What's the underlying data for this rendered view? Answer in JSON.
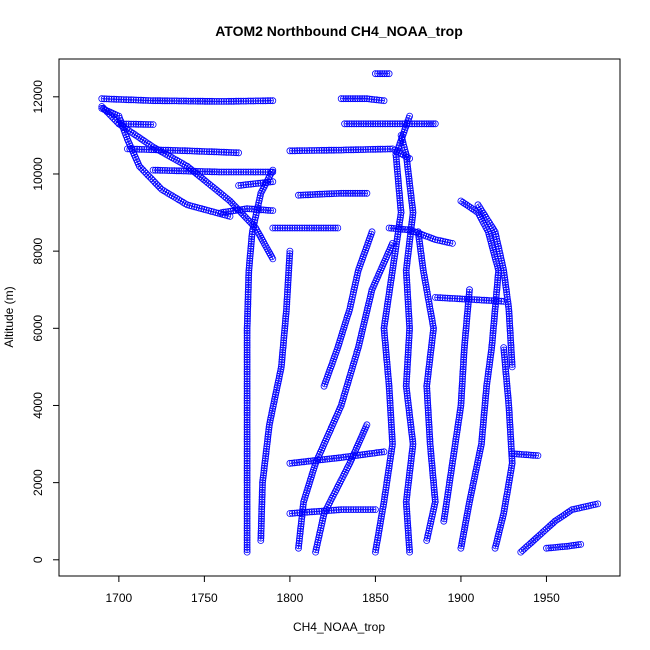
{
  "chart_data": {
    "type": "scatter",
    "title": "ATOM2 Northbound CH4_NOAA_trop",
    "xlabel": "CH4_NOAA_trop",
    "ylabel": "Altitude (m)",
    "xlim": [
      1665,
      1993
    ],
    "ylim": [
      -420,
      12980
    ],
    "xticks": [
      1700,
      1750,
      1800,
      1850,
      1900,
      1950
    ],
    "yticks": [
      0,
      2000,
      4000,
      6000,
      8000,
      10000,
      12000
    ],
    "grid": false,
    "legend": "none",
    "series": [
      {
        "marker": "open-circle",
        "connect_points": true,
        "color": "#0000ff",
        "tracks": [
          [
            [
              1775,
              200
            ],
            [
              1775,
              1500
            ],
            [
              1775,
              3000
            ],
            [
              1775,
              4500
            ],
            [
              1775,
              6000
            ],
            [
              1776,
              7500
            ],
            [
              1778,
              8500
            ],
            [
              1783,
              9500
            ],
            [
              1790,
              10100
            ]
          ],
          [
            [
              1765,
              8900
            ],
            [
              1740,
              9200
            ],
            [
              1725,
              9600
            ],
            [
              1712,
              10200
            ],
            [
              1705,
              10900
            ],
            [
              1700,
              11500
            ],
            [
              1690,
              11700
            ]
          ],
          [
            [
              1690,
              11950
            ],
            [
              1720,
              11900
            ],
            [
              1760,
              11880
            ],
            [
              1790,
              11900
            ]
          ],
          [
            [
              1700,
              11300
            ],
            [
              1720,
              11280
            ]
          ],
          [
            [
              1705,
              10650
            ],
            [
              1740,
              10600
            ],
            [
              1770,
              10550
            ]
          ],
          [
            [
              1720,
              10100
            ],
            [
              1760,
              10050
            ],
            [
              1790,
              10050
            ]
          ],
          [
            [
              1690,
              11750
            ],
            [
              1700,
              11300
            ],
            [
              1720,
              10700
            ],
            [
              1740,
              10200
            ],
            [
              1765,
              9300
            ],
            [
              1780,
              8600
            ],
            [
              1790,
              7800
            ]
          ],
          [
            [
              1800,
              10600
            ],
            [
              1830,
              10620
            ],
            [
              1860,
              10650
            ],
            [
              1870,
              10400
            ]
          ],
          [
            [
              1830,
              11950
            ],
            [
              1845,
              11950
            ],
            [
              1855,
              11900
            ]
          ],
          [
            [
              1850,
              12600
            ],
            [
              1858,
              12600
            ]
          ],
          [
            [
              1832,
              11300
            ],
            [
              1850,
              11300
            ],
            [
              1880,
              11300
            ],
            [
              1885,
              11300
            ]
          ],
          [
            [
              1805,
              9450
            ],
            [
              1830,
              9500
            ],
            [
              1845,
              9500
            ]
          ],
          [
            [
              1790,
              8600
            ],
            [
              1810,
              8600
            ],
            [
              1828,
              8600
            ]
          ],
          [
            [
              1858,
              8600
            ],
            [
              1870,
              8550
            ],
            [
              1885,
              8300
            ],
            [
              1895,
              8200
            ]
          ],
          [
            [
              1885,
              6800
            ],
            [
              1905,
              6750
            ],
            [
              1925,
              6700
            ]
          ],
          [
            [
              1850,
              200
            ],
            [
              1855,
              1500
            ],
            [
              1860,
              3000
            ],
            [
              1858,
              4500
            ],
            [
              1855,
              6000
            ],
            [
              1860,
              7500
            ],
            [
              1865,
              9000
            ],
            [
              1862,
              10500
            ],
            [
              1870,
              11500
            ]
          ],
          [
            [
              1870,
              200
            ],
            [
              1868,
              1500
            ],
            [
              1872,
              3000
            ],
            [
              1868,
              4500
            ],
            [
              1870,
              6000
            ],
            [
              1868,
              7500
            ],
            [
              1872,
              9000
            ],
            [
              1868,
              10500
            ],
            [
              1865,
              11000
            ]
          ],
          [
            [
              1880,
              500
            ],
            [
              1885,
              1500
            ],
            [
              1882,
              3000
            ],
            [
              1880,
              4500
            ],
            [
              1884,
              6000
            ],
            [
              1878,
              7500
            ],
            [
              1875,
              8500
            ]
          ],
          [
            [
              1900,
              300
            ],
            [
              1905,
              1500
            ],
            [
              1912,
              3000
            ],
            [
              1915,
              4500
            ],
            [
              1918,
              5500
            ],
            [
              1920,
              6500
            ],
            [
              1922,
              7500
            ],
            [
              1916,
              8500
            ],
            [
              1910,
              9000
            ],
            [
              1900,
              9300
            ]
          ],
          [
            [
              1920,
              300
            ],
            [
              1925,
              1200
            ],
            [
              1930,
              2500
            ],
            [
              1928,
              4000
            ],
            [
              1925,
              5500
            ]
          ],
          [
            [
              1935,
              200
            ],
            [
              1945,
              600
            ],
            [
              1955,
              1000
            ],
            [
              1965,
              1300
            ],
            [
              1980,
              1450
            ]
          ],
          [
            [
              1805,
              300
            ],
            [
              1808,
              1500
            ],
            [
              1815,
              2500
            ],
            [
              1830,
              4000
            ],
            [
              1840,
              5500
            ],
            [
              1848,
              7000
            ],
            [
              1860,
              8200
            ]
          ],
          [
            [
              1815,
              200
            ],
            [
              1820,
              1200
            ],
            [
              1835,
              2500
            ],
            [
              1845,
              3500
            ]
          ],
          [
            [
              1783,
              500
            ],
            [
              1784,
              2000
            ],
            [
              1788,
              3500
            ],
            [
              1795,
              5000
            ],
            [
              1798,
              6500
            ],
            [
              1800,
              8000
            ]
          ],
          [
            [
              1820,
              4500
            ],
            [
              1828,
              5500
            ],
            [
              1835,
              6500
            ],
            [
              1840,
              7500
            ],
            [
              1848,
              8500
            ]
          ],
          [
            [
              1890,
              1000
            ],
            [
              1895,
              2500
            ],
            [
              1900,
              4000
            ],
            [
              1902,
              5500
            ],
            [
              1905,
              7000
            ]
          ],
          [
            [
              1930,
              5000
            ],
            [
              1928,
              6500
            ],
            [
              1925,
              7500
            ],
            [
              1920,
              8500
            ],
            [
              1910,
              9200
            ]
          ],
          [
            [
              1800,
              1200
            ],
            [
              1830,
              1300
            ],
            [
              1850,
              1300
            ]
          ],
          [
            [
              1800,
              2500
            ],
            [
              1830,
              2650
            ],
            [
              1855,
              2800
            ]
          ],
          [
            [
              1950,
              300
            ],
            [
              1962,
              350
            ],
            [
              1970,
              400
            ]
          ],
          [
            [
              1930,
              2750
            ],
            [
              1945,
              2700
            ]
          ],
          [
            [
              1770,
              9700
            ],
            [
              1790,
              9800
            ]
          ],
          [
            [
              1760,
              9000
            ],
            [
              1775,
              9100
            ],
            [
              1790,
              9050
            ]
          ]
        ]
      }
    ]
  }
}
